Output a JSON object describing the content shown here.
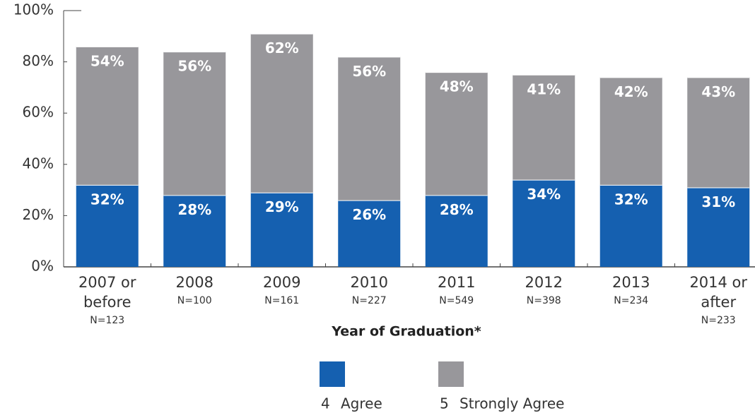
{
  "chart_data": {
    "type": "stacked_bar",
    "x_label": "Year of Graduation*",
    "categories": [
      "2007 or before",
      "2008",
      "2009",
      "2010",
      "2011",
      "2012",
      "2013",
      "2014 or after"
    ],
    "category_notes": [
      "N=123",
      "N=100",
      "N=161",
      "N=227",
      "N=549",
      "N=398",
      "N=234",
      "N=233"
    ],
    "series": [
      {
        "code": "4",
        "name": "Agree",
        "color": "#1560b0",
        "values": [
          32,
          28,
          29,
          26,
          28,
          34,
          32,
          31
        ]
      },
      {
        "code": "5",
        "name": "Strongly Agree",
        "color": "#98979b",
        "values": [
          54,
          56,
          62,
          56,
          48,
          41,
          42,
          43
        ]
      }
    ],
    "ylim": [
      0,
      100
    ],
    "yticks": [
      {
        "value": 0,
        "label": "0%"
      },
      {
        "value": 20,
        "label": "20%"
      },
      {
        "value": 40,
        "label": "40%"
      },
      {
        "value": 60,
        "label": "60%"
      },
      {
        "value": 80,
        "label": "80%"
      },
      {
        "value": 100,
        "label": "100%"
      }
    ]
  }
}
